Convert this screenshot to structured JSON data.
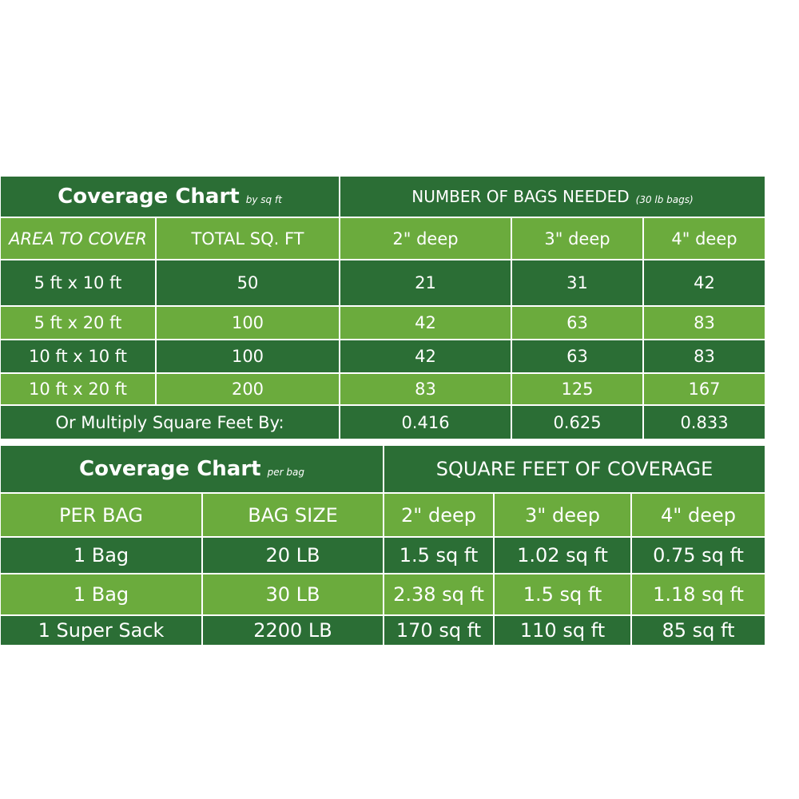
{
  "table1": {
    "title": "Coverage Chart",
    "title_note": "by sq ft",
    "group_header": "NUMBER OF BAGS NEEDED",
    "group_note": "(30 lb bags)",
    "columns": [
      "AREA TO COVER",
      "TOTAL SQ. FT",
      "2\" deep",
      "3\" deep",
      "4\" deep"
    ],
    "rows": [
      [
        "5 ft x 10 ft",
        50,
        21,
        31,
        42
      ],
      [
        "5 ft x 20 ft",
        100,
        42,
        63,
        83
      ],
      [
        "10 ft x 10 ft",
        100,
        42,
        63,
        83
      ],
      [
        "10 ft x 20 ft",
        200,
        83,
        125,
        167
      ]
    ],
    "footer": {
      "label": "Or Multiply Square Feet By:",
      "values": [
        0.416,
        0.625,
        0.833
      ]
    }
  },
  "table2": {
    "title": "Coverage Chart",
    "title_note": "per bag",
    "group_header": "SQUARE FEET OF COVERAGE",
    "columns": [
      "PER BAG",
      "BAG SIZE",
      "2\" deep",
      "3\" deep",
      "4\" deep"
    ],
    "rows": [
      [
        "1 Bag",
        "20 LB",
        "1.5 sq ft",
        "1.02 sq ft",
        "0.75 sq ft"
      ],
      [
        "1 Bag",
        "30 LB",
        "2.38 sq ft",
        "1.5 sq ft",
        "1.18 sq ft"
      ],
      [
        "1 Super Sack",
        "2200 LB",
        "170 sq ft",
        "110 sq ft",
        "85 sq ft"
      ]
    ]
  }
}
